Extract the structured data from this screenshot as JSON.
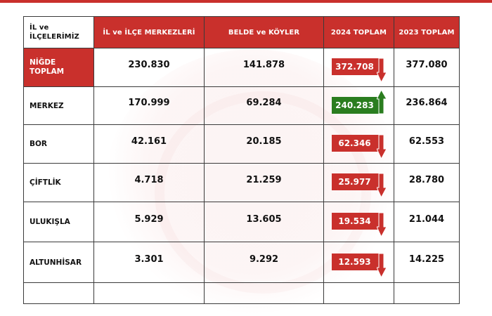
{
  "colors": {
    "brand_red": "#c9302c",
    "increase_green": "#2a7d1f",
    "text": "#111111"
  },
  "table": {
    "headers": [
      "İL ve İLÇELERİMİZ",
      "İL ve İLÇE MERKEZLERİ",
      "BELDE ve KÖYLER",
      "2024 TOPLAM",
      "2023 TOPLAM"
    ],
    "header_first_lines": [
      "İL ve",
      "İLÇELERİMİZ"
    ],
    "rows": [
      {
        "name_lines": [
          "NİĞDE",
          "TOPLAM"
        ],
        "center": "230.830",
        "village": "141.878",
        "total_2024": "372.708",
        "trend": "down",
        "total_2023": "377.080",
        "icon": "arrow-down-icon"
      },
      {
        "name_lines": [
          "MERKEZ",
          ""
        ],
        "center": "170.999",
        "village": "69.284",
        "total_2024": "240.283",
        "trend": "up",
        "total_2023": "236.864",
        "icon": "arrow-up-icon"
      },
      {
        "name_lines": [
          "BOR",
          ""
        ],
        "center": "42.161",
        "village": "20.185",
        "total_2024": "62.346",
        "trend": "down",
        "total_2023": "62.553",
        "icon": "arrow-down-icon"
      },
      {
        "name_lines": [
          "ÇİFTLİK",
          ""
        ],
        "center": "4.718",
        "village": "21.259",
        "total_2024": "25.977",
        "trend": "down",
        "total_2023": "28.780",
        "icon": "arrow-down-icon"
      },
      {
        "name_lines": [
          "ULUKIŞLA",
          ""
        ],
        "center": "5.929",
        "village": "13.605",
        "total_2024": "19.534",
        "trend": "down",
        "total_2023": "21.044",
        "icon": "arrow-down-icon"
      },
      {
        "name_lines": [
          "ALTUNHİSAR",
          ""
        ],
        "center": "3.301",
        "village": "9.292",
        "total_2024": "12.593",
        "trend": "down",
        "total_2023": "14.225",
        "icon": "arrow-down-icon"
      },
      {
        "name_lines": [
          "",
          ""
        ],
        "center": "",
        "village": "",
        "total_2024": "",
        "trend": "",
        "total_2023": "",
        "icon": ""
      }
    ]
  }
}
